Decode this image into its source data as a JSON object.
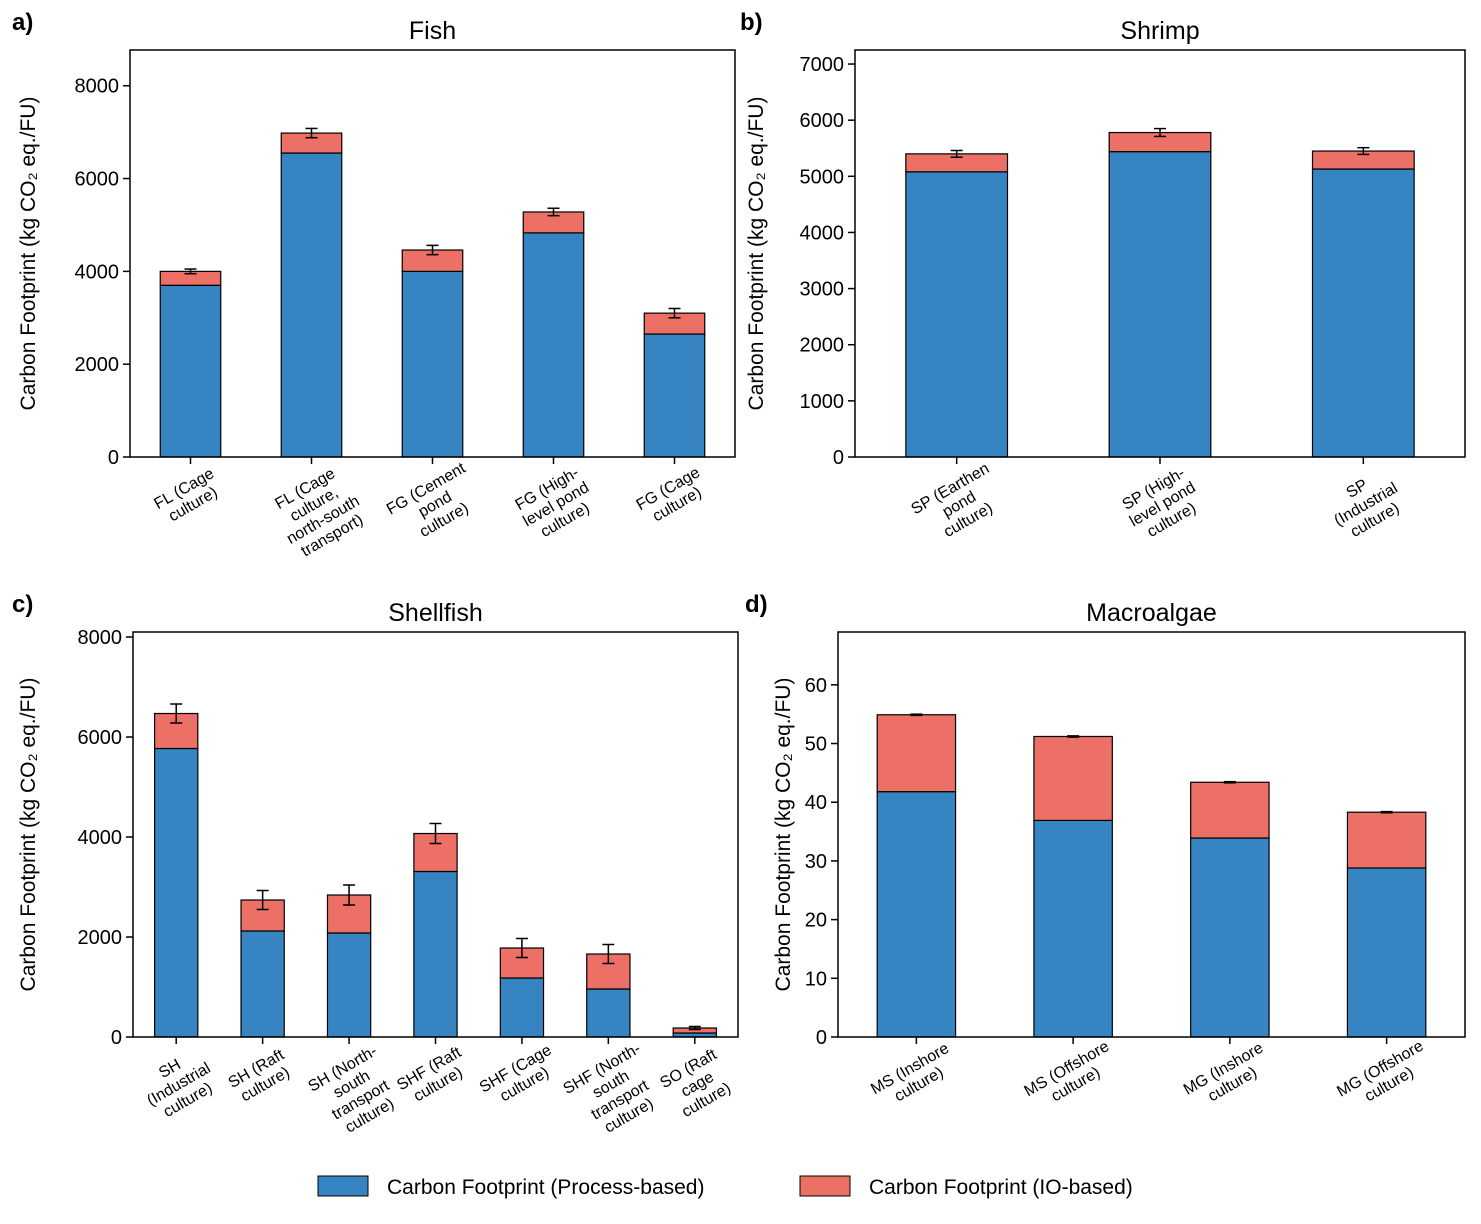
{
  "legend": [
    {
      "name": "Carbon Footprint (Process-based)",
      "color": "#3784c3"
    },
    {
      "name": "Carbon Footprint (IO-based)",
      "color": "#ec7065"
    }
  ],
  "chart_data": [
    {
      "type": "stacked_bar",
      "label": "a)",
      "title": "Fish",
      "ylabel": "Carbon Footprint (kg CO₂ eq./FU)",
      "categories": [
        "FL (Cage\nculture)",
        "FL (Cage\nculture,\nnorth-south\ntransport)",
        "FG (Cement\npond\nculture)",
        "FG (High-\nlevel pond\nculture)",
        "FG (Cage\nculture)"
      ],
      "series": [
        {
          "values": [
            3700,
            6550,
            4000,
            4830,
            2650
          ]
        },
        {
          "values": [
            300,
            430,
            460,
            450,
            450
          ],
          "errors": [
            50,
            100,
            100,
            80,
            100
          ]
        }
      ],
      "ylim": [
        0,
        8770
      ],
      "yticks": [
        0,
        2000,
        4000,
        6000,
        8000
      ]
    },
    {
      "type": "stacked_bar",
      "label": "b)",
      "title": "Shrimp",
      "ylabel": "Carbon Footprint (kg CO₂ eq./FU)",
      "categories": [
        "SP (Earthen\npond\nculture)",
        "SP (High-\nlevel pond\nculture)",
        "SP\n(Industrial\nculture)"
      ],
      "series": [
        {
          "values": [
            5080,
            5440,
            5130
          ]
        },
        {
          "values": [
            320,
            340,
            320
          ],
          "errors": [
            60,
            70,
            60
          ]
        }
      ],
      "ylim": [
        0,
        7250
      ],
      "yticks": [
        0,
        1000,
        2000,
        3000,
        4000,
        5000,
        6000,
        7000
      ]
    },
    {
      "type": "stacked_bar",
      "label": "c)",
      "title": "Shellfish",
      "ylabel": "Carbon Footprint (kg CO₂ eq./FU)",
      "categories": [
        "SH\n(Industrial\nculture)",
        "SH (Raft\nculture)",
        "SH (North-\nsouth\ntransport\nculture)",
        "SHF (Raft\nculture)",
        "SHF (Cage\nculture)",
        "SHF (North-\nsouth\ntransport\nculture)",
        "SO (Raft\ncage\nculture)"
      ],
      "series": [
        {
          "values": [
            5770,
            2120,
            2080,
            3310,
            1180,
            960,
            80
          ]
        },
        {
          "values": [
            700,
            620,
            760,
            760,
            600,
            700,
            100
          ],
          "errors": [
            190,
            190,
            200,
            200,
            190,
            190,
            30
          ]
        }
      ],
      "ylim": [
        0,
        8100
      ],
      "yticks": [
        0,
        2000,
        4000,
        6000,
        8000
      ]
    },
    {
      "type": "stacked_bar",
      "label": "d)",
      "title": "Macroalgae",
      "ylabel": "Carbon Footprint (kg CO₂ eq./FU)",
      "categories": [
        "MS (Inshore\nculture)",
        "MS (Offshore\nculture)",
        "MG (Inshore\nculture)",
        "MG (Offshore\nculture)"
      ],
      "series": [
        {
          "values": [
            41.8,
            36.9,
            33.9,
            28.8
          ]
        },
        {
          "values": [
            13.1,
            14.3,
            9.5,
            9.5
          ],
          "errors": [
            0.1,
            0.1,
            0.1,
            0.1
          ]
        }
      ],
      "ylim": [
        0,
        69
      ],
      "yticks": [
        0,
        10,
        20,
        30,
        40,
        50,
        60
      ]
    }
  ]
}
